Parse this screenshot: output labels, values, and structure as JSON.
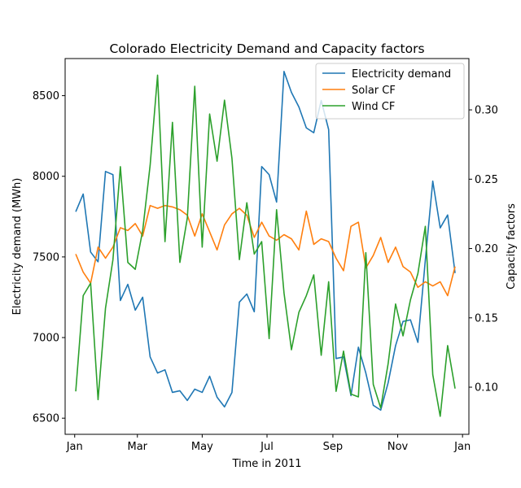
{
  "chart_data": {
    "type": "line",
    "title": "Colorado Electricity Demand and Capacity factors",
    "xlabel": "Time in 2011",
    "ylabel_left": "Electricity demand (MWh)",
    "ylabel_right": "Capacity factors",
    "x_tick_labels": [
      "Jan",
      "Mar",
      "May",
      "Jul",
      "Sep",
      "Nov",
      "Jan"
    ],
    "x_tick_dates": [
      "2011-01-01",
      "2011-03-01",
      "2011-05-01",
      "2011-07-01",
      "2011-09-01",
      "2011-11-01",
      "2012-01-01"
    ],
    "x_range": [
      "2010-12-23",
      "2012-01-07"
    ],
    "left_ylim": [
      6400,
      8730
    ],
    "left_yticks": [
      6500,
      7000,
      7500,
      8000,
      8500
    ],
    "right_ylim": [
      0.066,
      0.337
    ],
    "right_yticks": [
      0.1,
      0.15,
      0.2,
      0.25,
      0.3
    ],
    "right_tick_labels": [
      "0.10",
      "0.15",
      "0.20",
      "0.25",
      "0.30"
    ],
    "legend_position": "upper-right",
    "grid": false,
    "dates": [
      "2011-01-02",
      "2011-01-09",
      "2011-01-16",
      "2011-01-23",
      "2011-01-30",
      "2011-02-06",
      "2011-02-13",
      "2011-02-20",
      "2011-02-27",
      "2011-03-06",
      "2011-03-13",
      "2011-03-20",
      "2011-03-27",
      "2011-04-03",
      "2011-04-10",
      "2011-04-17",
      "2011-04-24",
      "2011-05-01",
      "2011-05-08",
      "2011-05-15",
      "2011-05-22",
      "2011-05-29",
      "2011-06-05",
      "2011-06-12",
      "2011-06-19",
      "2011-06-26",
      "2011-07-03",
      "2011-07-10",
      "2011-07-17",
      "2011-07-24",
      "2011-07-31",
      "2011-08-07",
      "2011-08-14",
      "2011-08-21",
      "2011-08-28",
      "2011-09-04",
      "2011-09-11",
      "2011-09-18",
      "2011-09-25",
      "2011-10-02",
      "2011-10-09",
      "2011-10-16",
      "2011-10-23",
      "2011-10-30",
      "2011-11-06",
      "2011-11-13",
      "2011-11-20",
      "2011-11-27",
      "2011-12-04",
      "2011-12-11",
      "2011-12-18",
      "2011-12-25"
    ],
    "series": [
      {
        "name": "Electricity demand",
        "axis": "left",
        "color": "#1f77b4",
        "values": [
          7780,
          7890,
          7530,
          7470,
          8030,
          8010,
          7230,
          7330,
          7170,
          7250,
          6880,
          6780,
          6800,
          6660,
          6670,
          6610,
          6680,
          6660,
          6760,
          6630,
          6570,
          6660,
          7220,
          7270,
          7160,
          8060,
          8010,
          7840,
          8650,
          8520,
          8430,
          8300,
          8270,
          8470,
          8290,
          6870,
          6880,
          6640,
          6940,
          6780,
          6580,
          6550,
          6720,
          6950,
          7100,
          7110,
          6970,
          7480,
          7970,
          7680,
          7760,
          7400
        ]
      },
      {
        "name": "Solar CF",
        "axis": "right",
        "color": "#ff7f0e",
        "values": [
          0.196,
          0.183,
          0.175,
          0.201,
          0.193,
          0.201,
          0.215,
          0.213,
          0.218,
          0.209,
          0.231,
          0.229,
          0.231,
          0.23,
          0.228,
          0.224,
          0.209,
          0.225,
          0.212,
          0.199,
          0.217,
          0.225,
          0.229,
          0.224,
          0.208,
          0.219,
          0.209,
          0.206,
          0.21,
          0.207,
          0.199,
          0.227,
          0.203,
          0.207,
          0.205,
          0.193,
          0.184,
          0.216,
          0.219,
          0.186,
          0.195,
          0.208,
          0.19,
          0.201,
          0.187,
          0.183,
          0.172,
          0.176,
          0.173,
          0.176,
          0.166,
          0.187
        ]
      },
      {
        "name": "Wind CF",
        "axis": "right",
        "color": "#2ca02c",
        "values": [
          0.097,
          0.166,
          0.175,
          0.091,
          0.157,
          0.192,
          0.259,
          0.19,
          0.185,
          0.213,
          0.26,
          0.325,
          0.205,
          0.291,
          0.19,
          0.222,
          0.317,
          0.201,
          0.297,
          0.263,
          0.307,
          0.265,
          0.192,
          0.233,
          0.196,
          0.205,
          0.135,
          0.228,
          0.168,
          0.127,
          0.154,
          0.166,
          0.181,
          0.123,
          0.176,
          0.097,
          0.126,
          0.095,
          0.093,
          0.197,
          0.102,
          0.085,
          0.117,
          0.16,
          0.137,
          0.163,
          0.182,
          0.216,
          0.109,
          0.079,
          0.13,
          0.099
        ]
      }
    ]
  }
}
